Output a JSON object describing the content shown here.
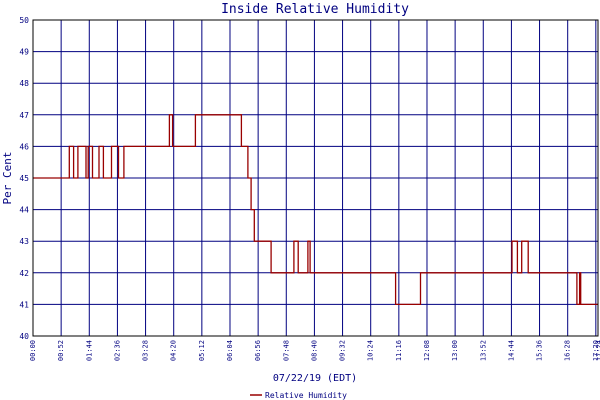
{
  "chart_data": {
    "type": "line",
    "title": "Inside Relative Humidity",
    "xlabel": "07/22/19 (EDT)",
    "ylabel": "Per Cent",
    "ylim": [
      40,
      50
    ],
    "y_ticks": [
      40,
      41,
      42,
      43,
      44,
      45,
      46,
      47,
      48,
      49,
      50
    ],
    "x_tick_labels": [
      "00:00",
      "00:52",
      "01:44",
      "02:36",
      "03:28",
      "04:20",
      "05:12",
      "06:04",
      "06:56",
      "07:48",
      "08:40",
      "09:32",
      "10:24",
      "11:16",
      "12:08",
      "13:00",
      "13:52",
      "14:44",
      "15:36",
      "16:28",
      "17:20",
      "17:24"
    ],
    "xlim_minutes": [
      0,
      1044
    ],
    "grid": true,
    "line_style": "step",
    "colors": {
      "series": "#990000",
      "grid": "#000080",
      "axes": "#000000",
      "text": "#000080"
    },
    "legend": {
      "placement": "bottom-center"
    },
    "series": [
      {
        "name": "Relative Humidity",
        "x_minutes": [
          0,
          65,
          67,
          72,
          75,
          80,
          83,
          95,
          98,
          100,
          102,
          104,
          110,
          112,
          122,
          127,
          130,
          143,
          145,
          148,
          158,
          162,
          168,
          183,
          215,
          252,
          254,
          258,
          286,
          300,
          322,
          380,
          385,
          397,
          400,
          403,
          407,
          409,
          415,
          418,
          421,
          440,
          480,
          482,
          488,
          490,
          505,
          508,
          512,
          580,
          645,
          670,
          670,
          712,
          716,
          720,
          850,
          880,
          885,
          888,
          895,
          898,
          903,
          915,
          1000,
          1005,
          1010,
          1012,
          1044
        ],
        "values": [
          45,
          45,
          46,
          46,
          45,
          45,
          46,
          46,
          45,
          45,
          46,
          46,
          45,
          45,
          46,
          46,
          45,
          45,
          46,
          46,
          45,
          45,
          46,
          46,
          46,
          47,
          47,
          46,
          46,
          47,
          47,
          47,
          46,
          45,
          45,
          44,
          44,
          43,
          43,
          43,
          43,
          42,
          42,
          43,
          43,
          42,
          42,
          43,
          42,
          42,
          42,
          41,
          41,
          41,
          42,
          42,
          42,
          42,
          43,
          43,
          42,
          42,
          43,
          42,
          42,
          41,
          42,
          41,
          41
        ]
      }
    ]
  }
}
